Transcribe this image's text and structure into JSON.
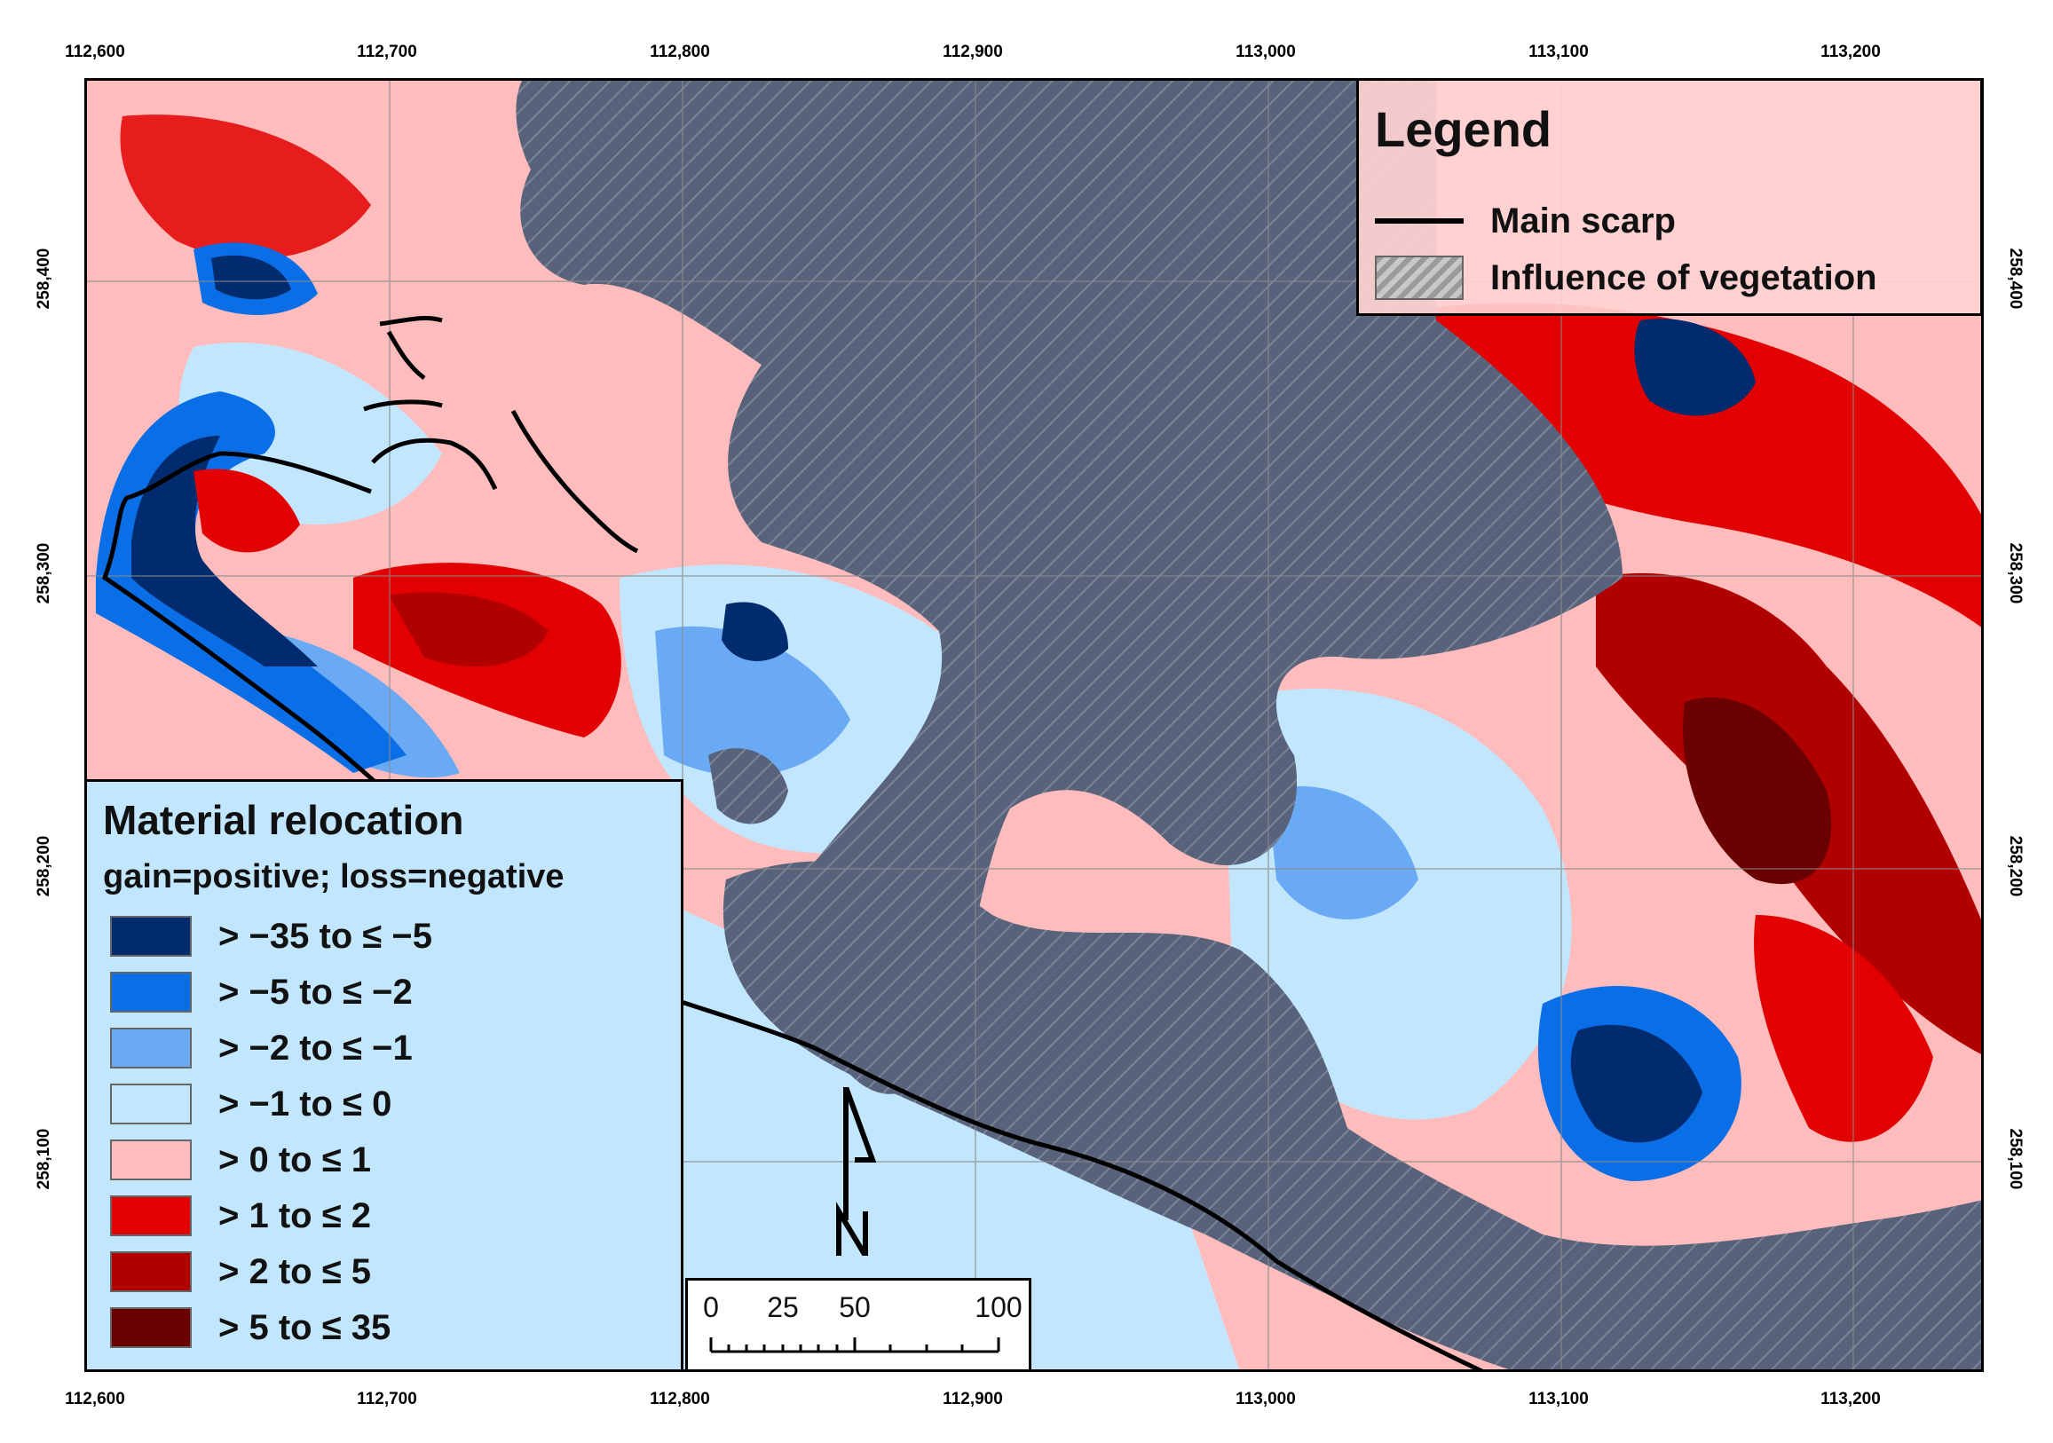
{
  "map": {
    "x_ticks": [
      "112,600",
      "112,700",
      "112,800",
      "112,900",
      "113,000",
      "113,100",
      "113,200"
    ],
    "y_ticks": [
      "258,400",
      "258,300",
      "258,200",
      "258,100"
    ]
  },
  "legend": {
    "title": "Legend",
    "items": [
      {
        "label": "Main scarp",
        "symbol": "line",
        "color": "#000000"
      },
      {
        "label": "Influence of vegetation",
        "symbol": "hatch",
        "color": "#9a9a9a"
      }
    ]
  },
  "relocation": {
    "title": "Material relocation",
    "subtitle": "gain=positive; loss=negative",
    "classes": [
      {
        "label": "> −35 to ≤ −5",
        "color": "#002b6e"
      },
      {
        "label": "> −5 to ≤ −2",
        "color": "#0a6ee6"
      },
      {
        "label": "> −2 to ≤ −1",
        "color": "#6aaaf5"
      },
      {
        "label": "> −1 to ≤ 0",
        "color": "#c3e6ff"
      },
      {
        "label": "> 0 to ≤ 1",
        "color": "#ffbcbc"
      },
      {
        "label": "> 1 to ≤ 2",
        "color": "#e30000"
      },
      {
        "label": "> 2 to ≤ 5",
        "color": "#b10000"
      },
      {
        "label": "> 5 to ≤ 35",
        "color": "#6b0000"
      }
    ]
  },
  "scale_bar": {
    "labels": [
      "0",
      "25",
      "50",
      "100"
    ]
  },
  "colors": {
    "vegetation": "#5a6478",
    "loss_light": "#c3e6ff",
    "gain_light": "#ffbcbc"
  }
}
